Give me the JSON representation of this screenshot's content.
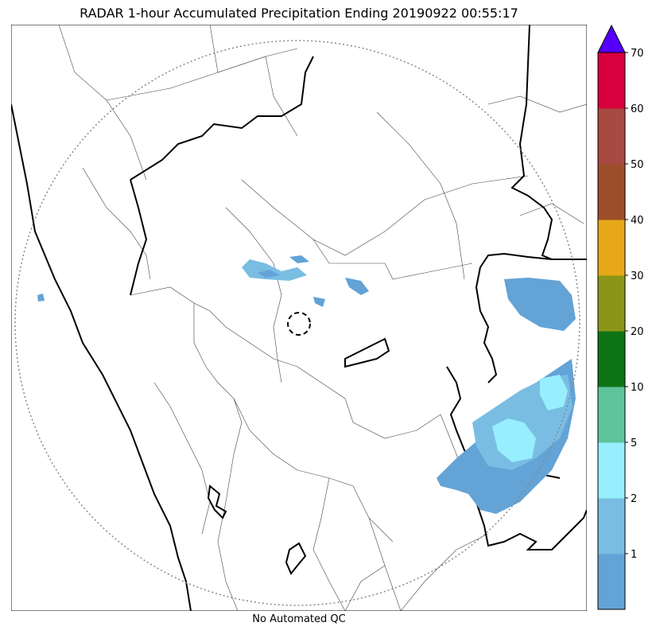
{
  "title": "RADAR 1-hour Accumulated Precipitation Ending 20190922 00:55:17",
  "footer": "No Automated QC",
  "colorbar": {
    "extend": "max",
    "extend_color": "#5500ff",
    "levels": [
      {
        "label": "",
        "color": "#63a3d6"
      },
      {
        "label": "1",
        "color": "#79bde3"
      },
      {
        "label": "2",
        "color": "#97eefd"
      },
      {
        "label": "5",
        "color": "#5ec49b"
      },
      {
        "label": "10",
        "color": "#0f7416"
      },
      {
        "label": "20",
        "color": "#8b9617"
      },
      {
        "label": "30",
        "color": "#e6a817"
      },
      {
        "label": "40",
        "color": "#9c4e2a"
      },
      {
        "label": "50",
        "color": "#a84a42"
      },
      {
        "label": "60",
        "color": "#d8003e"
      },
      {
        "label": "70",
        "color": ""
      }
    ]
  },
  "colors": {
    "light_rain": "#63a3d6",
    "moderate_rain": "#79bde3",
    "heavier_rain": "#97eefd",
    "state_boundary": "#000000",
    "district_boundary": "#444444",
    "range_ring": "#888888"
  }
}
